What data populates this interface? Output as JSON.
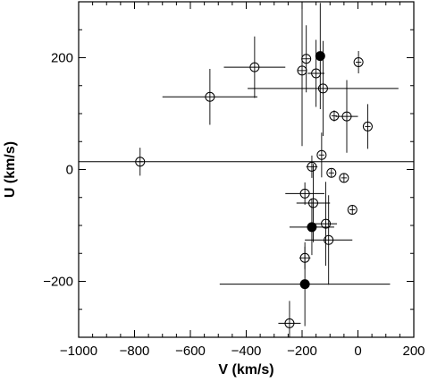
{
  "chart_data": {
    "type": "scatter",
    "xlabel": "V  (km/s)",
    "ylabel": "U  (km/s)",
    "xlim": [
      -1000,
      200
    ],
    "ylim": [
      -300,
      300
    ],
    "xticks": [
      -1000,
      -800,
      -600,
      -400,
      -200,
      0,
      200
    ],
    "xtick_labels": [
      "−1000",
      "−800",
      "−600",
      "−400",
      "−200",
      "0",
      "200"
    ],
    "yticks": [
      -200,
      0,
      200
    ],
    "ytick_labels": [
      "−200",
      "0",
      "200"
    ],
    "grid": false,
    "reference_line_y": 14,
    "series": [
      {
        "marker": "open-circle",
        "points": [
          {
            "x": -185,
            "y": 198,
            "xerr": 15,
            "yerr": 60
          },
          {
            "x": 2,
            "y": 192,
            "xerr": 10,
            "yerr": 20
          },
          {
            "x": -370,
            "y": 183,
            "xerr": 110,
            "yerr": 55
          },
          {
            "x": -200,
            "y": 177,
            "xerr": 15,
            "yerr": 135
          },
          {
            "x": -150,
            "y": 172,
            "xerr": 30,
            "yerr": 60
          },
          {
            "x": -125,
            "y": 145,
            "xerr": 270,
            "yerr": 85
          },
          {
            "x": -530,
            "y": 130,
            "xerr": 170,
            "yerr": 50
          },
          {
            "x": -85,
            "y": 96,
            "xerr": 10,
            "yerr": 10
          },
          {
            "x": -40,
            "y": 95,
            "xerr": 40,
            "yerr": 65
          },
          {
            "x": 35,
            "y": 77,
            "xerr": 10,
            "yerr": 40
          },
          {
            "x": -130,
            "y": 26,
            "xerr": 10,
            "yerr": 40
          },
          {
            "x": -780,
            "y": 14,
            "xerr": 10,
            "yerr": 25
          },
          {
            "x": -165,
            "y": 5,
            "xerr": 20,
            "yerr": 20
          },
          {
            "x": -95,
            "y": -6,
            "xerr": 10,
            "yerr": 8
          },
          {
            "x": -50,
            "y": -15,
            "xerr": 10,
            "yerr": 8
          },
          {
            "x": -190,
            "y": -43,
            "xerr": 70,
            "yerr": 20
          },
          {
            "x": -160,
            "y": -60,
            "xerr": 60,
            "yerr": 70
          },
          {
            "x": -20,
            "y": -72,
            "xerr": 10,
            "yerr": 8
          },
          {
            "x": -115,
            "y": -97,
            "xerr": 40,
            "yerr": 75
          },
          {
            "x": -105,
            "y": -126,
            "xerr": 85,
            "yerr": 80
          },
          {
            "x": -190,
            "y": -158,
            "xerr": 20,
            "yerr": 20
          },
          {
            "x": -245,
            "y": -275,
            "xerr": 40,
            "yerr": 40
          }
        ]
      },
      {
        "marker": "filled-circle",
        "points": [
          {
            "x": -135,
            "y": 203,
            "xerr": 15,
            "yerr": 95
          },
          {
            "x": -165,
            "y": -103,
            "xerr": 80,
            "yerr": 50
          },
          {
            "x": -190,
            "y": -205,
            "xerr": 305,
            "yerr": 75
          }
        ]
      }
    ]
  }
}
